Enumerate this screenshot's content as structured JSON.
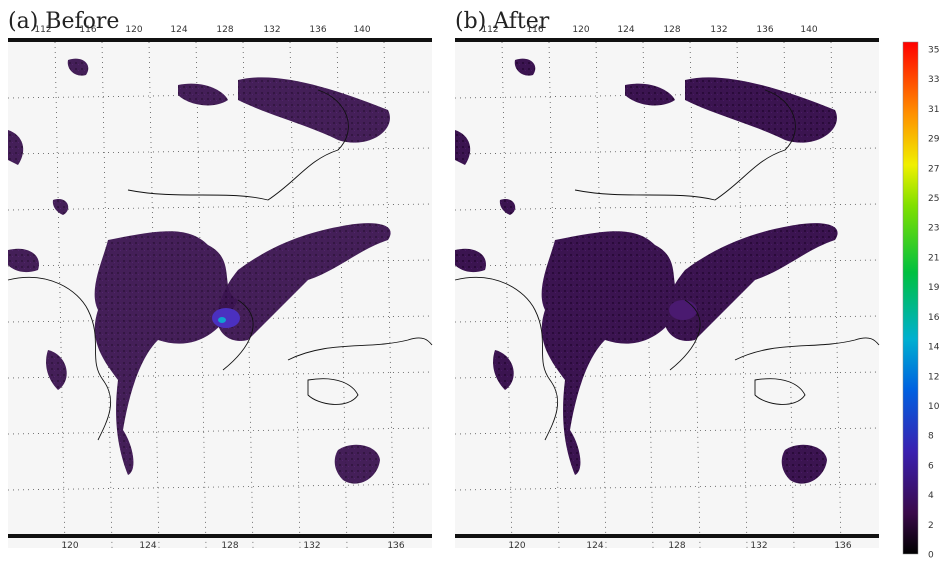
{
  "panels": [
    {
      "caption": "(a) Before",
      "top_ticks": [
        "112",
        "116",
        "120",
        "124",
        "128",
        "132",
        "136",
        "140"
      ],
      "bottom_ticks": [
        "120",
        "124",
        "128",
        "132",
        "136"
      ]
    },
    {
      "caption": "(b) After",
      "top_ticks": [
        "112",
        "116",
        "120",
        "124",
        "128",
        "132",
        "136",
        "140"
      ],
      "bottom_ticks": [
        "120",
        "124",
        "128",
        "132",
        "136"
      ]
    }
  ],
  "colorbar": {
    "labels": [
      "35",
      "33",
      "31",
      "29",
      "27",
      "25",
      "23",
      "21",
      "19",
      "16",
      "14",
      "12",
      "10",
      "8",
      "6",
      "4",
      "2",
      "0"
    ]
  }
}
